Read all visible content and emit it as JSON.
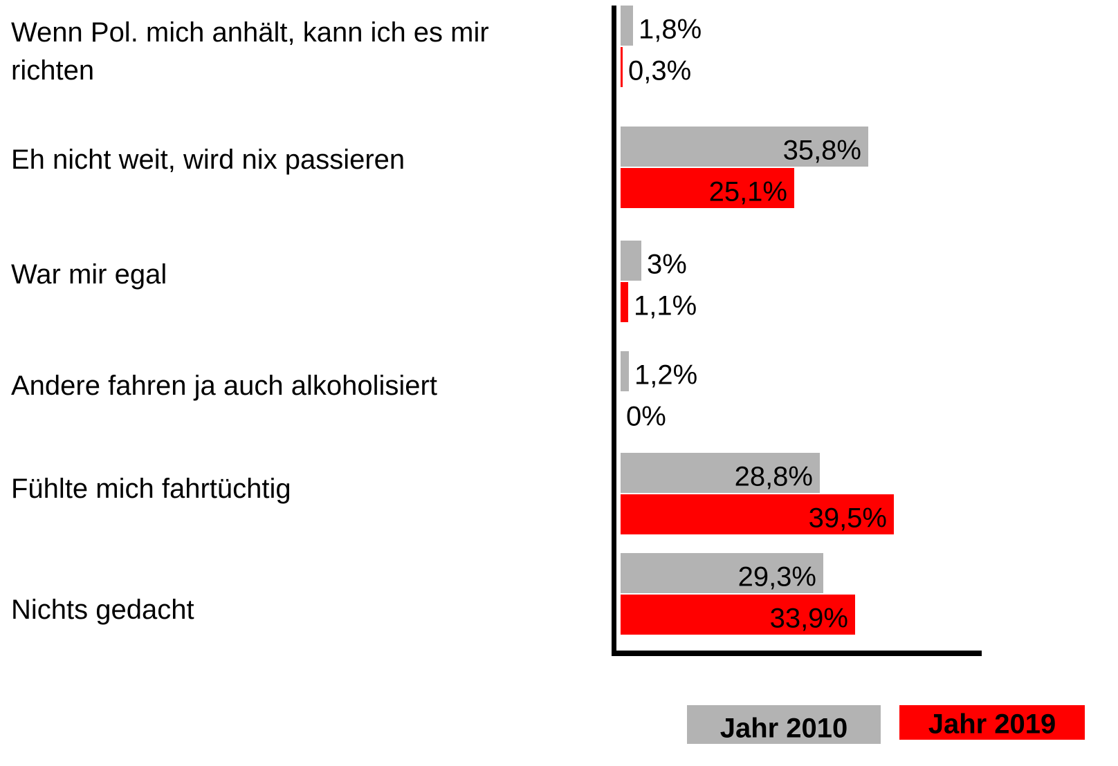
{
  "chart_data": {
    "type": "hbar",
    "categories": [
      "Wenn Pol. mich anhält, kann ich es mir richten",
      "Eh nicht weit, wird nix passieren",
      "War mir egal",
      "Andere fahren ja auch alkoholisiert",
      "Fühlte mich fahrtüchtig",
      "Nichts gedacht"
    ],
    "series": [
      {
        "name": "Jahr 2010",
        "color": "#b3b3b3",
        "values": [
          1.8,
          35.8,
          3,
          1.2,
          28.8,
          29.3
        ],
        "value_labels": [
          "1,8%",
          "35,8%",
          "3%",
          "1,2%",
          "28,8%",
          "29,3%"
        ]
      },
      {
        "name": "Jahr 2019",
        "color": "#ff0000",
        "values": [
          0.3,
          25.1,
          1.1,
          0,
          39.5,
          33.9
        ],
        "value_labels": [
          "0,3%",
          "25,1%",
          "1,1%",
          "0%",
          "39,5%",
          "33,9%"
        ]
      }
    ],
    "xlim": [
      0,
      52
    ]
  }
}
